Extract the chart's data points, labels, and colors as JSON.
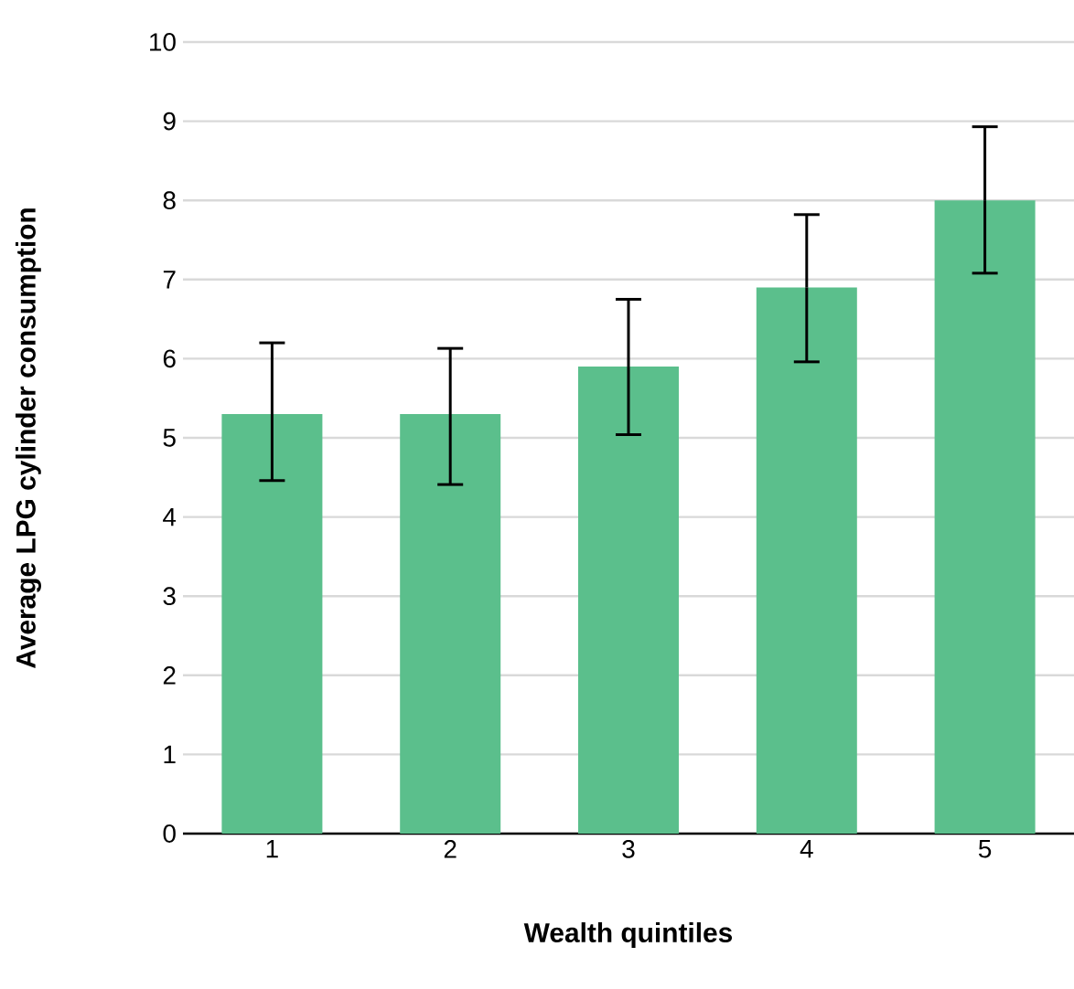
{
  "chart_data": {
    "type": "bar",
    "xlabel": "Wealth quintiles",
    "ylabel": "Average LPG cylinder consumption",
    "categories": [
      "1",
      "2",
      "3",
      "4",
      "5"
    ],
    "values": [
      5.3,
      5.3,
      5.9,
      6.9,
      8.0
    ],
    "errors": [
      [
        4.46,
        6.2
      ],
      [
        4.41,
        6.13
      ],
      [
        5.04,
        6.75
      ],
      [
        5.96,
        7.82
      ],
      [
        7.08,
        8.93
      ]
    ],
    "color": "#5bbf8c",
    "ylim": [
      0,
      10
    ],
    "yticks": [
      0,
      1,
      2,
      3,
      4,
      5,
      6,
      7,
      8,
      9,
      10
    ],
    "grid": "y"
  }
}
